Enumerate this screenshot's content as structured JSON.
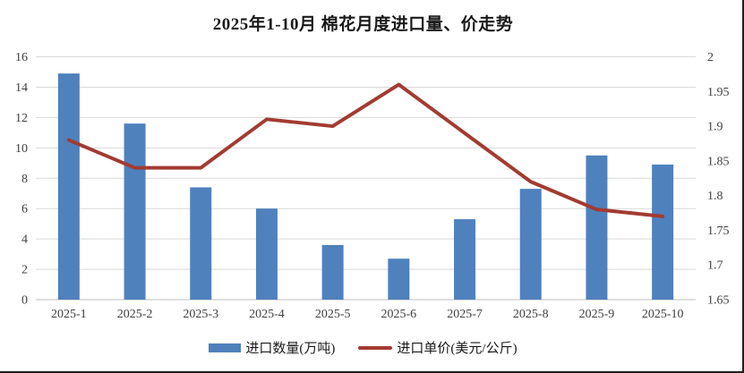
{
  "title": "2025年1-10月 棉花月度进口量、价走势",
  "colors": {
    "bar": "#4F81BD",
    "line": "#A23B32",
    "grid": "#D9D9D9",
    "axis_line": "#BFBFBF",
    "tick_text": "#404040",
    "title_text": "#1a1a1a",
    "cell_border": "#1f1f1f",
    "background": "#ffffff"
  },
  "chart_data": {
    "type": "combo",
    "title": "2025年1-10月 棉花月度进口量、价走势",
    "categories": [
      "2025-1",
      "2025-2",
      "2025-3",
      "2025-4",
      "2025-5",
      "2025-6",
      "2025-7",
      "2025-8",
      "2025-9",
      "2025-10"
    ],
    "series": [
      {
        "name": "进口数量(万吨)",
        "type": "bar",
        "axis": "left",
        "values": [
          14.9,
          11.6,
          7.4,
          6.0,
          3.6,
          2.7,
          5.3,
          7.3,
          9.5,
          8.9
        ]
      },
      {
        "name": "进口单价(美元/公斤)",
        "type": "line",
        "axis": "right",
        "values": [
          1.88,
          1.84,
          1.84,
          1.91,
          1.9,
          1.96,
          1.89,
          1.82,
          1.78,
          1.77
        ]
      }
    ],
    "left_axis": {
      "min": 0,
      "max": 16,
      "step": 2,
      "ticks": [
        "0",
        "2",
        "4",
        "6",
        "8",
        "10",
        "12",
        "14",
        "16"
      ]
    },
    "right_axis": {
      "min": 1.65,
      "max": 2,
      "step": 0.05,
      "ticks": [
        "1.65",
        "1.7",
        "1.75",
        "1.8",
        "1.85",
        "1.9",
        "1.95",
        "2"
      ]
    },
    "grid": true,
    "legend_position": "bottom"
  },
  "legend": {
    "items": [
      {
        "label": "进口数量(万吨)",
        "swatch": "bar"
      },
      {
        "label": "进口单价(美元/公斤)",
        "swatch": "line"
      }
    ]
  }
}
